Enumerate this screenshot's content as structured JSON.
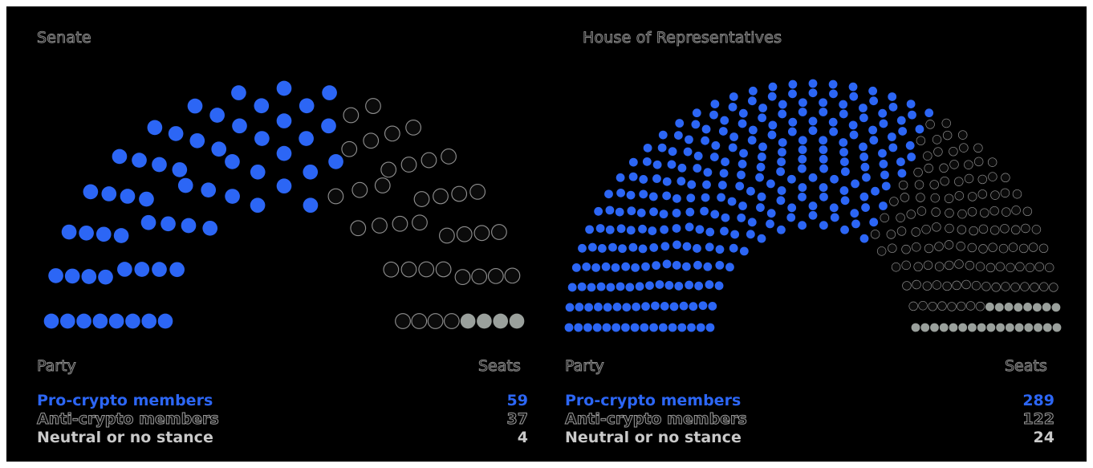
{
  "colors": {
    "pro": "#2c66f5",
    "anti": "#0b0b0b",
    "anti_stroke": "#8f8f8f",
    "neutral": "#9aa09c",
    "background": "#000000"
  },
  "chart_data": [
    {
      "type": "parliament",
      "title": "Senate",
      "legend_header": {
        "party": "Party",
        "seats": "Seats"
      },
      "total_seats": 100,
      "series": [
        {
          "name": "Pro-crypto members",
          "value": 59,
          "color": "#2c66f5"
        },
        {
          "name": "Anti-crypto members",
          "value": 37,
          "color": "#0b0b0b"
        },
        {
          "name": "Neutral or no stance",
          "value": 4,
          "color": "#9aa09c"
        }
      ]
    },
    {
      "type": "parliament",
      "title": "House of Representatives",
      "legend_header": {
        "party": "Party",
        "seats": "Seats"
      },
      "total_seats": 435,
      "series": [
        {
          "name": "Pro-crypto members",
          "value": 289,
          "color": "#2c66f5"
        },
        {
          "name": "Anti-crypto members",
          "value": 122,
          "color": "#0b0b0b"
        },
        {
          "name": "Neutral or no stance",
          "value": 24,
          "color": "#9aa09c"
        }
      ]
    }
  ]
}
